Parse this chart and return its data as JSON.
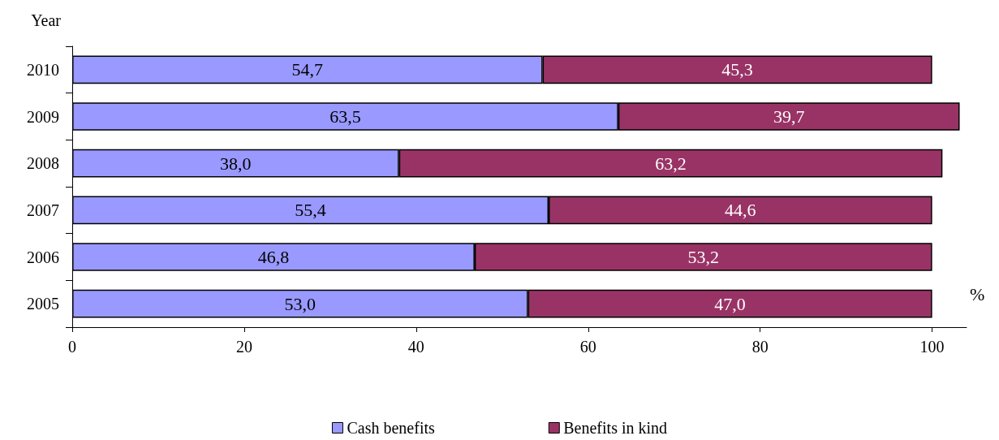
{
  "chart_data": {
    "type": "bar",
    "orientation": "horizontal",
    "stacked": true,
    "ylabel": "Year",
    "xlabel": "%",
    "categories": [
      "2010",
      "2009",
      "2008",
      "2007",
      "2006",
      "2005"
    ],
    "series": [
      {
        "name": "Cash benefits",
        "color": "#9999ff",
        "values": [
          54.7,
          63.5,
          38.0,
          55.4,
          46.8,
          53.0
        ],
        "value_labels": [
          "54,7",
          "63,5",
          "38,0",
          "55,4",
          "46,8",
          "53,0"
        ]
      },
      {
        "name": "Benefits in kind",
        "color": "#993366",
        "values": [
          45.3,
          39.7,
          63.2,
          44.6,
          53.2,
          47.0
        ],
        "value_labels": [
          "45,3",
          "39,7",
          "63,2",
          "44,6",
          "53,2",
          "47,0"
        ]
      }
    ],
    "xlim": [
      0,
      104
    ],
    "xticks": [
      0,
      20,
      40,
      60,
      80,
      100
    ],
    "legend": "bottom",
    "grid": false
  }
}
